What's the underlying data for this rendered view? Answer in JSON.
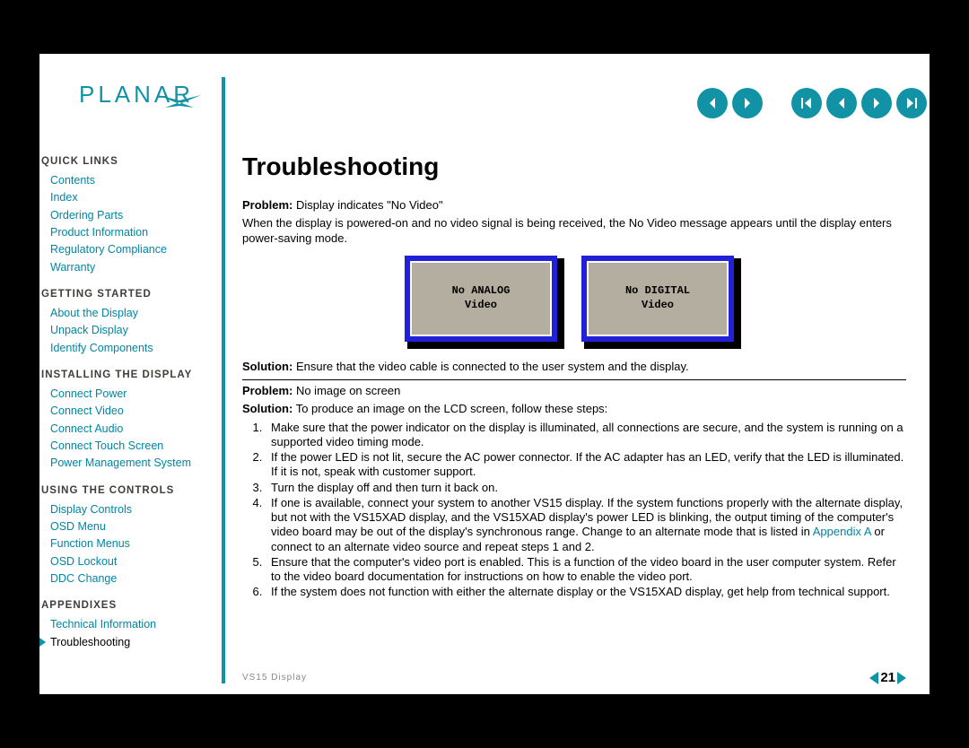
{
  "brand": "PLANAR",
  "pagination": {
    "page_number": "21",
    "footer_label": "VS15 Display"
  },
  "nav": {
    "sections": [
      {
        "heading": "QUICK LINKS",
        "items": [
          {
            "label": "Contents",
            "current": false
          },
          {
            "label": "Index",
            "current": false
          },
          {
            "label": "Ordering Parts",
            "current": false
          },
          {
            "label": "Product Information",
            "current": false
          },
          {
            "label": "Regulatory Compliance",
            "current": false
          },
          {
            "label": "Warranty",
            "current": false
          }
        ]
      },
      {
        "heading": "GETTING STARTED",
        "items": [
          {
            "label": "About the Display",
            "current": false
          },
          {
            "label": "Unpack Display",
            "current": false
          },
          {
            "label": "Identify Components",
            "current": false
          }
        ]
      },
      {
        "heading": "INSTALLING THE DISPLAY",
        "items": [
          {
            "label": "Connect Power",
            "current": false
          },
          {
            "label": "Connect Video",
            "current": false
          },
          {
            "label": "Connect Audio",
            "current": false
          },
          {
            "label": "Connect Touch Screen",
            "current": false
          },
          {
            "label": "Power Management System",
            "current": false
          }
        ]
      },
      {
        "heading": "USING THE CONTROLS",
        "items": [
          {
            "label": "Display Controls",
            "current": false
          },
          {
            "label": "OSD Menu",
            "current": false
          },
          {
            "label": "Function Menus",
            "current": false
          },
          {
            "label": "OSD Lockout",
            "current": false
          },
          {
            "label": "DDC Change",
            "current": false
          }
        ]
      },
      {
        "heading": "APPENDIXES",
        "items": [
          {
            "label": "Technical Information",
            "current": false
          },
          {
            "label": "Troubleshooting",
            "current": true
          }
        ]
      }
    ]
  },
  "content": {
    "title": "Troubleshooting",
    "problem1_label": "Problem:",
    "problem1_text": " Display indicates \"No Video\"",
    "problem1_desc": "When the display is powered-on and no video signal is being received, the No Video message appears until the display enters power-saving mode.",
    "display_msgs": {
      "left": "No ANALOG\nVideo",
      "right": "No DIGITAL\nVideo",
      "frame_color": "#2122d8",
      "screen_color": "#b4aea0",
      "border_color": "#ffffff"
    },
    "solution1_label": "Solution:",
    "solution1_text": " Ensure that the video cable is connected to the user system and the display.",
    "problem2_label": "Problem:",
    "problem2_text": " No image on screen",
    "solution2_label": "Solution:",
    "solution2_text": " To produce an image on the LCD screen, follow these steps:",
    "steps": [
      "Make sure that the power indicator on the display is illuminated, all connections are secure, and the system is running on a supported video timing mode.",
      "If the power LED is not lit, secure the AC power connector. If the AC adapter has an LED, verify that the LED is illuminated. If it is not, speak with customer support.",
      "Turn the display off and then turn it back on.",
      "If one is available, connect your system to another VS15 display. If the system functions properly with the alternate display, but not with the VS15XAD display, and the VS15XAD display's power LED is blinking, the output timing of the computer's video board may be out of the display's synchronous range. Change to an alternate mode that is listed in Appendix A or connect to an alternate video source and repeat steps 1 and 2.",
      "Ensure that the computer's video port is enabled. This is a function of the video board in the user computer system. Refer to the video board documentation for instructions on how to enable the video port.",
      "If the system does not function with either the alternate display or the VS15XAD display, get help from technical support."
    ],
    "appendix_link_text": "Appendix A"
  },
  "colors": {
    "accent": "#1193a5",
    "link": "#0086a3"
  }
}
